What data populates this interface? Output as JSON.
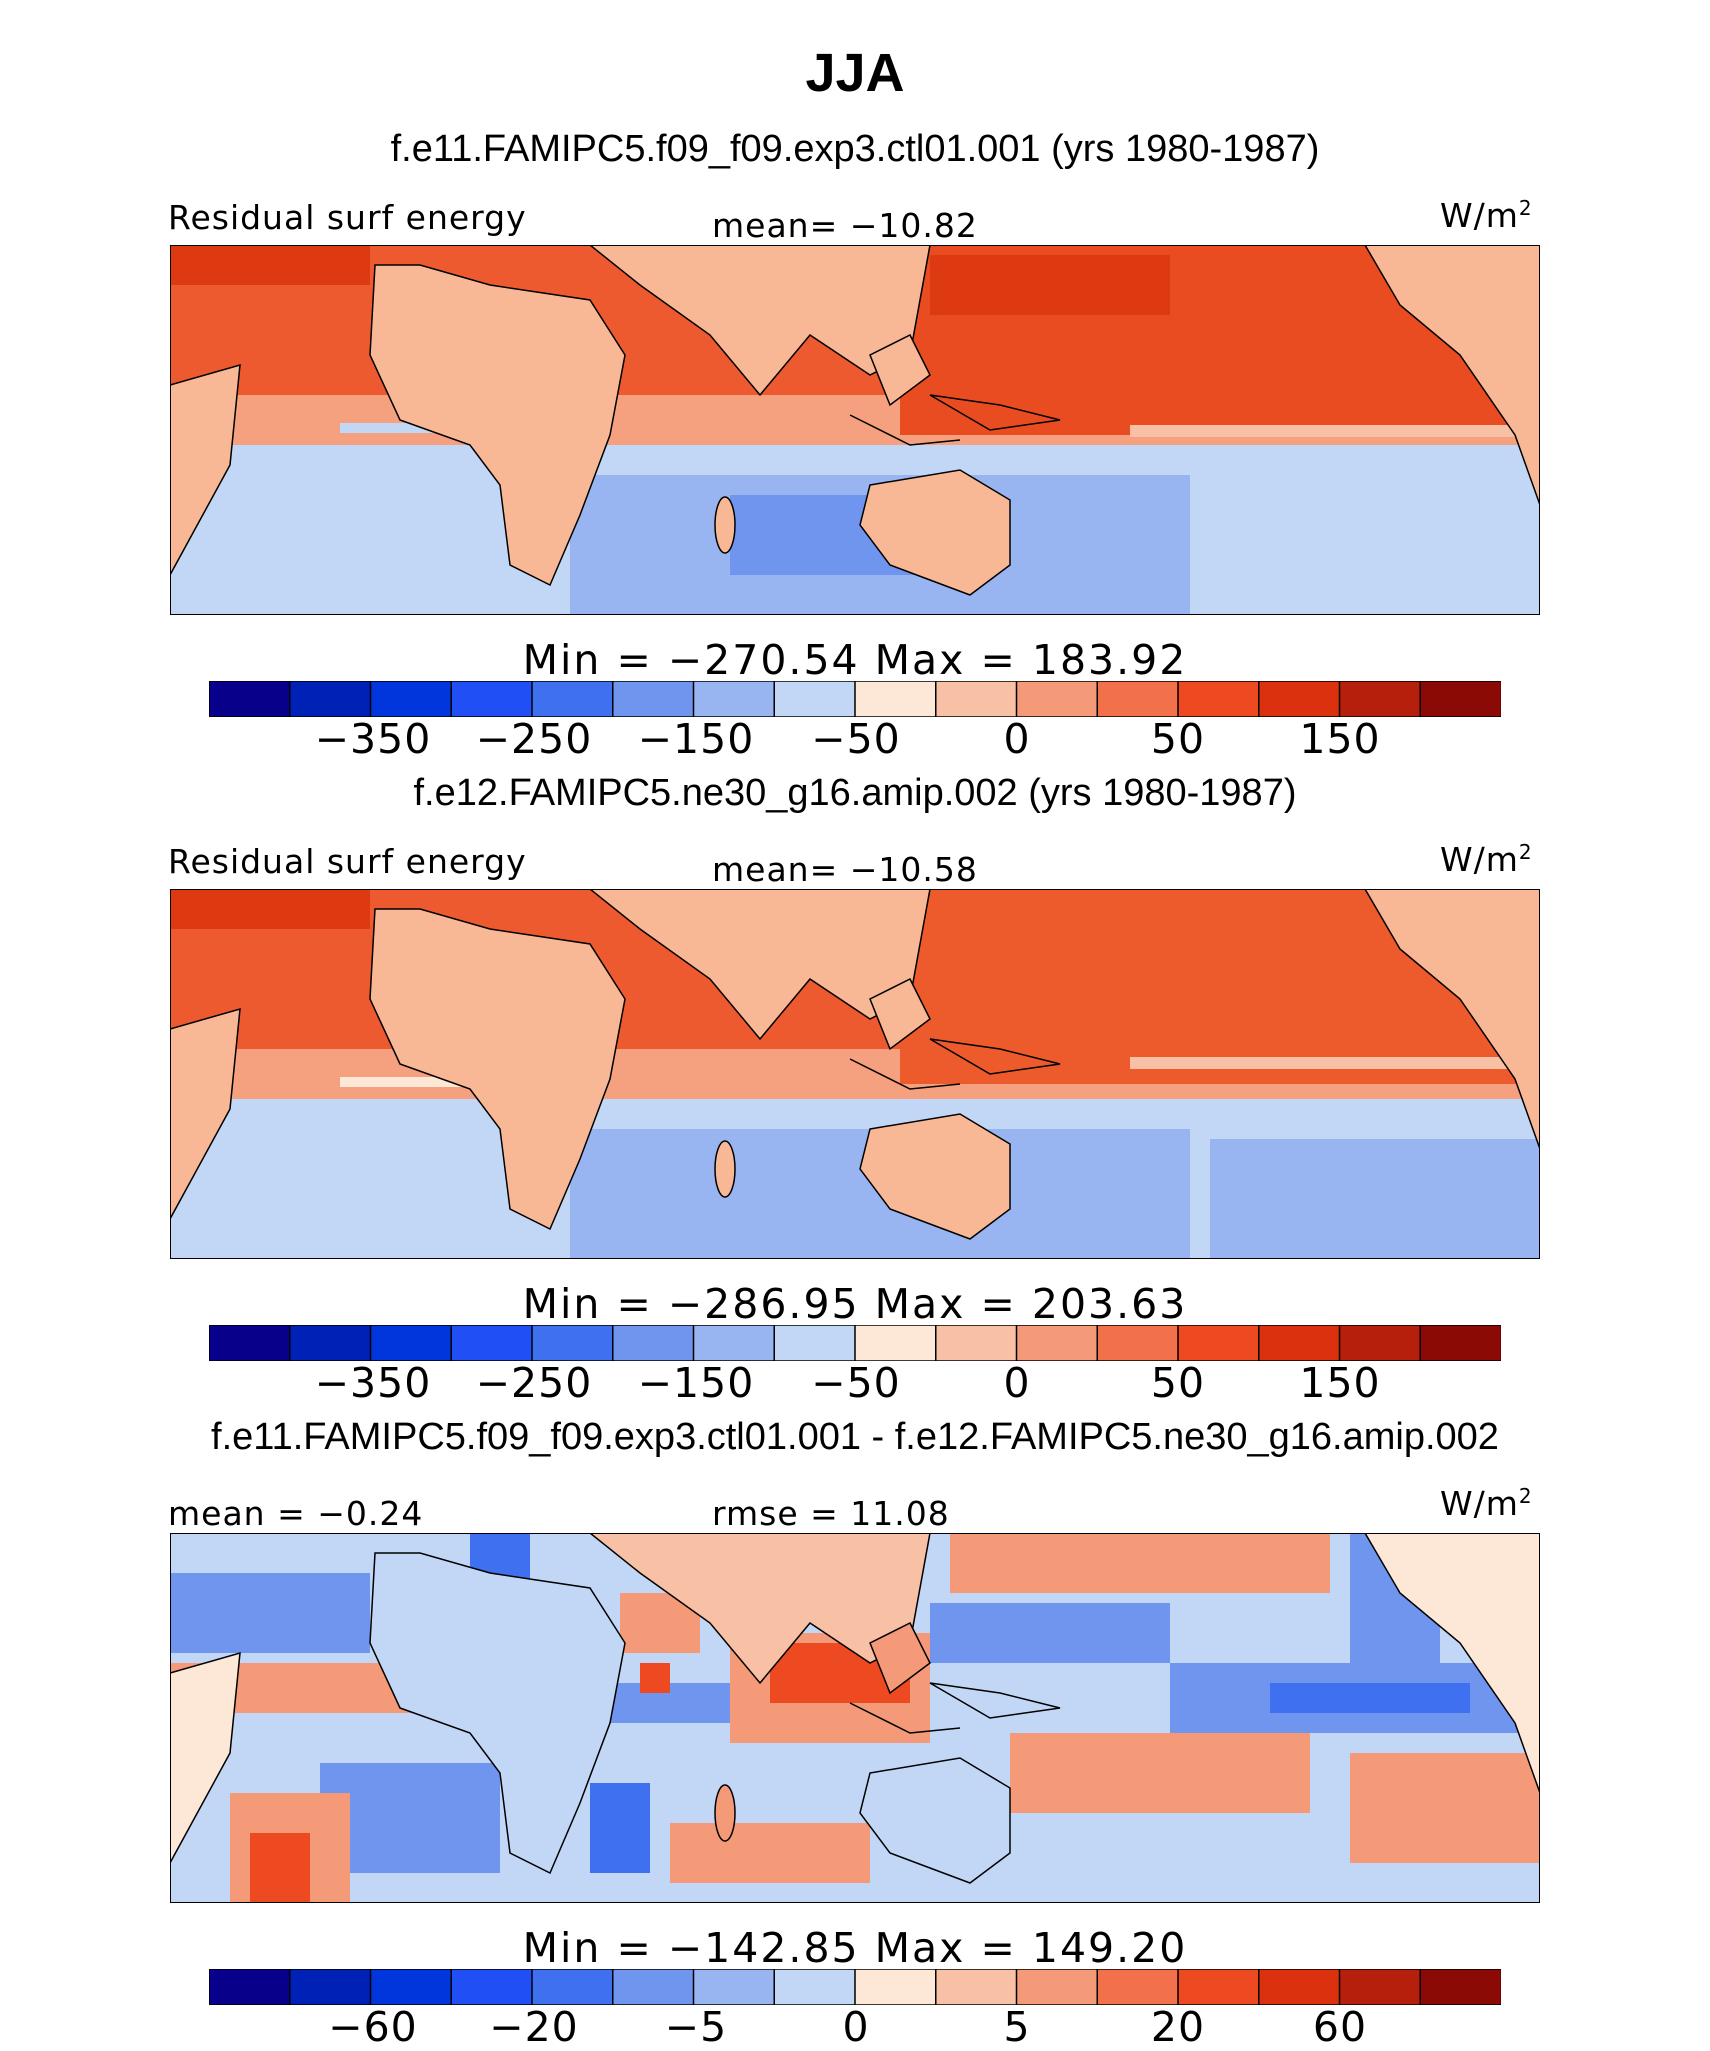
{
  "title": "JJA",
  "colors": {
    "cbar": [
      "#08008a",
      "#0021b6",
      "#0036dc",
      "#1f4ff5",
      "#3f70ef",
      "#6f95ef",
      "#98b5f2",
      "#c2d7f6",
      "#fde7d7",
      "#f8c0a4",
      "#f59a78",
      "#f2704a",
      "#ed4a22",
      "#db310f",
      "#b51f0b",
      "#8b0a05"
    ]
  },
  "panels": [
    {
      "title": "f.e11.FAMIPC5.f09_f09.exp3.ctl01.001 (yrs 1980-1987)",
      "left_label": "Residual surf energy",
      "center_label": "mean= −10.82",
      "units": "W/m",
      "units_sup": "2",
      "minmax": "Min = −270.54 Max = 183.92",
      "ticks": [
        "−350",
        "−250",
        "−150",
        "−50",
        "0",
        "50",
        "150"
      ]
    },
    {
      "title": "f.e12.FAMIPC5.ne30_g16.amip.002 (yrs 1980-1987)",
      "left_label": "Residual surf energy",
      "center_label": "mean= −10.58",
      "units": "W/m",
      "units_sup": "2",
      "minmax": "Min = −286.95 Max = 203.63",
      "ticks": [
        "−350",
        "−250",
        "−150",
        "−50",
        "0",
        "50",
        "150"
      ]
    },
    {
      "title": "f.e11.FAMIPC5.f09_f09.exp3.ctl01.001 - f.e12.FAMIPC5.ne30_g16.amip.002",
      "left_label": "mean = −0.24",
      "center_label": "rmse = 11.08",
      "units": "W/m",
      "units_sup": "2",
      "minmax": "Min = −142.85 Max = 149.20",
      "ticks": [
        "−60",
        "−20",
        "−5",
        "0",
        "5",
        "20",
        "60"
      ]
    }
  ],
  "chart_data": [
    {
      "type": "heatmap",
      "title": "f.e11.FAMIPC5.f09_f09.exp3.ctl01.001 (yrs 1980-1987)",
      "variable": "Residual surf energy",
      "mean": -10.82,
      "min": -270.54,
      "max": 183.92,
      "colorbar_levels": [
        -350,
        -250,
        -150,
        -50,
        0,
        50,
        150
      ]
    },
    {
      "type": "heatmap",
      "title": "f.e12.FAMIPC5.ne30_g16.amip.002 (yrs 1980-1987)",
      "variable": "Residual surf energy",
      "mean": -10.58,
      "min": -286.95,
      "max": 203.63,
      "colorbar_levels": [
        -350,
        -250,
        -150,
        -50,
        0,
        50,
        150
      ]
    },
    {
      "type": "heatmap",
      "title": "f.e11.FAMIPC5.f09_f09.exp3.ctl01.001 - f.e12.FAMIPC5.ne30_g16.amip.002",
      "mean": -0.24,
      "rmse": 11.08,
      "min": -142.85,
      "max": 149.2,
      "colorbar_levels": [
        -60,
        -20,
        -5,
        0,
        5,
        20,
        60
      ]
    }
  ]
}
